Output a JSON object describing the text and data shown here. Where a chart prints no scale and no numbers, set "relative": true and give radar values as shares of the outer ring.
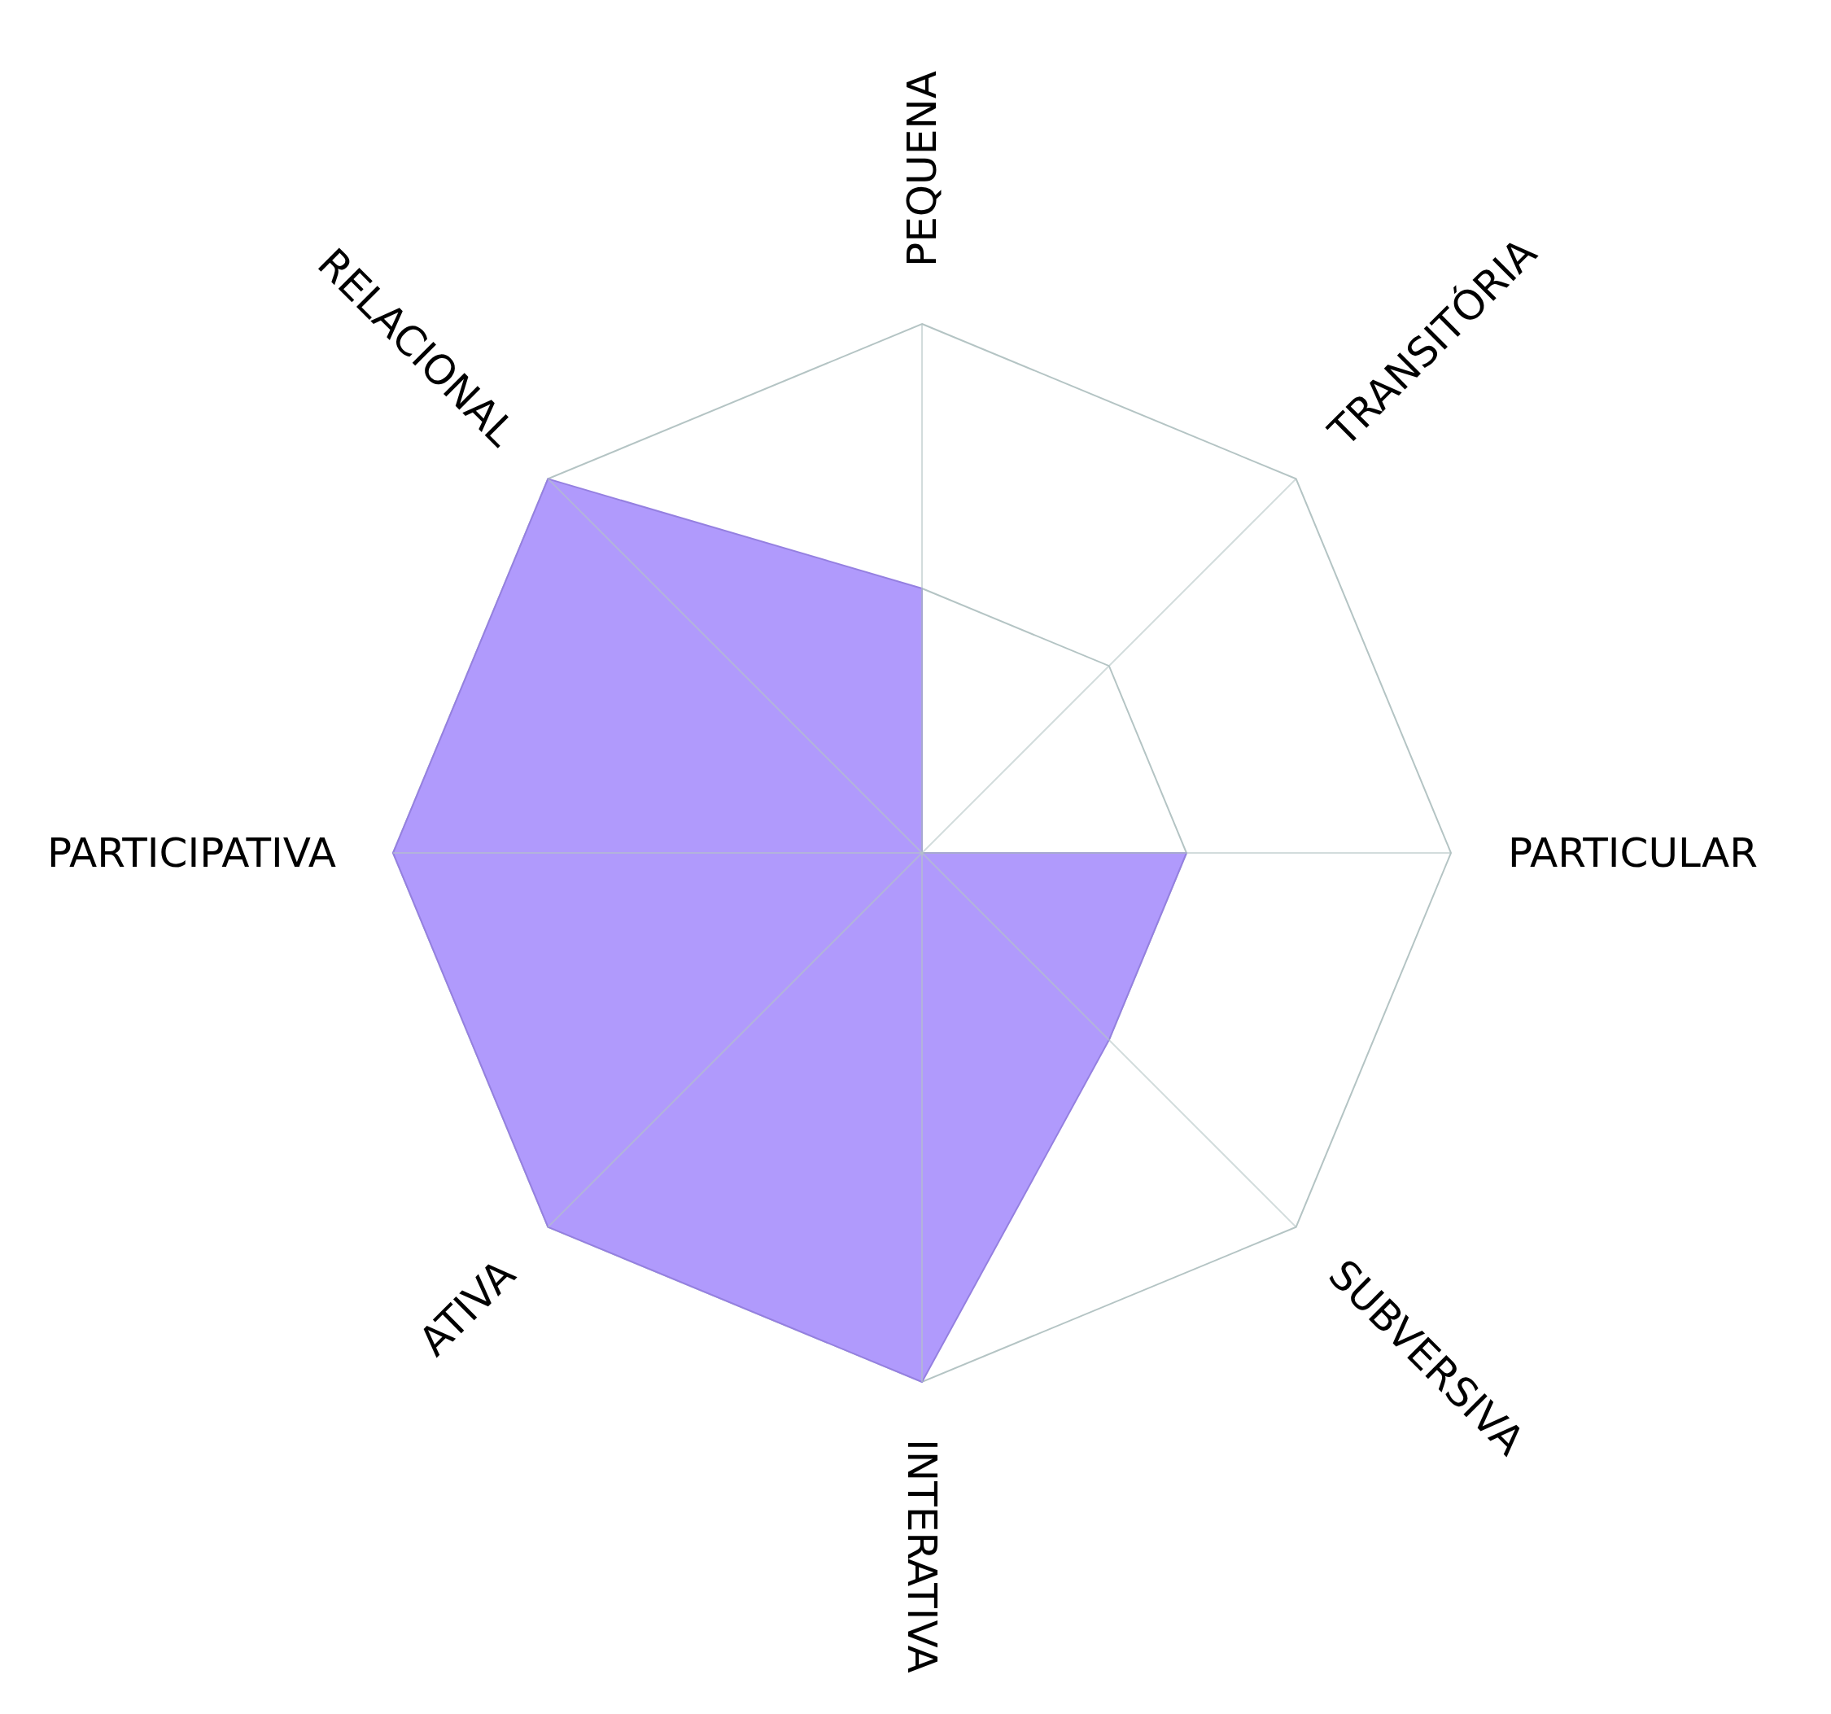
{
  "chart_data": {
    "type": "radar",
    "relative": true,
    "categories": [
      "PEQUENA",
      "TRANSITÓRIA",
      "PARTICULAR",
      "SUBVERSIVA",
      "INTERATIVA",
      "ATIVA",
      "PARTICIPATIVA",
      "RELACIONAL"
    ],
    "series": [
      {
        "color": "#b09afc",
        "values": [
          0.5,
          0,
          0.5,
          0.5,
          1,
          1,
          1,
          1
        ]
      }
    ],
    "grid": true
  }
}
